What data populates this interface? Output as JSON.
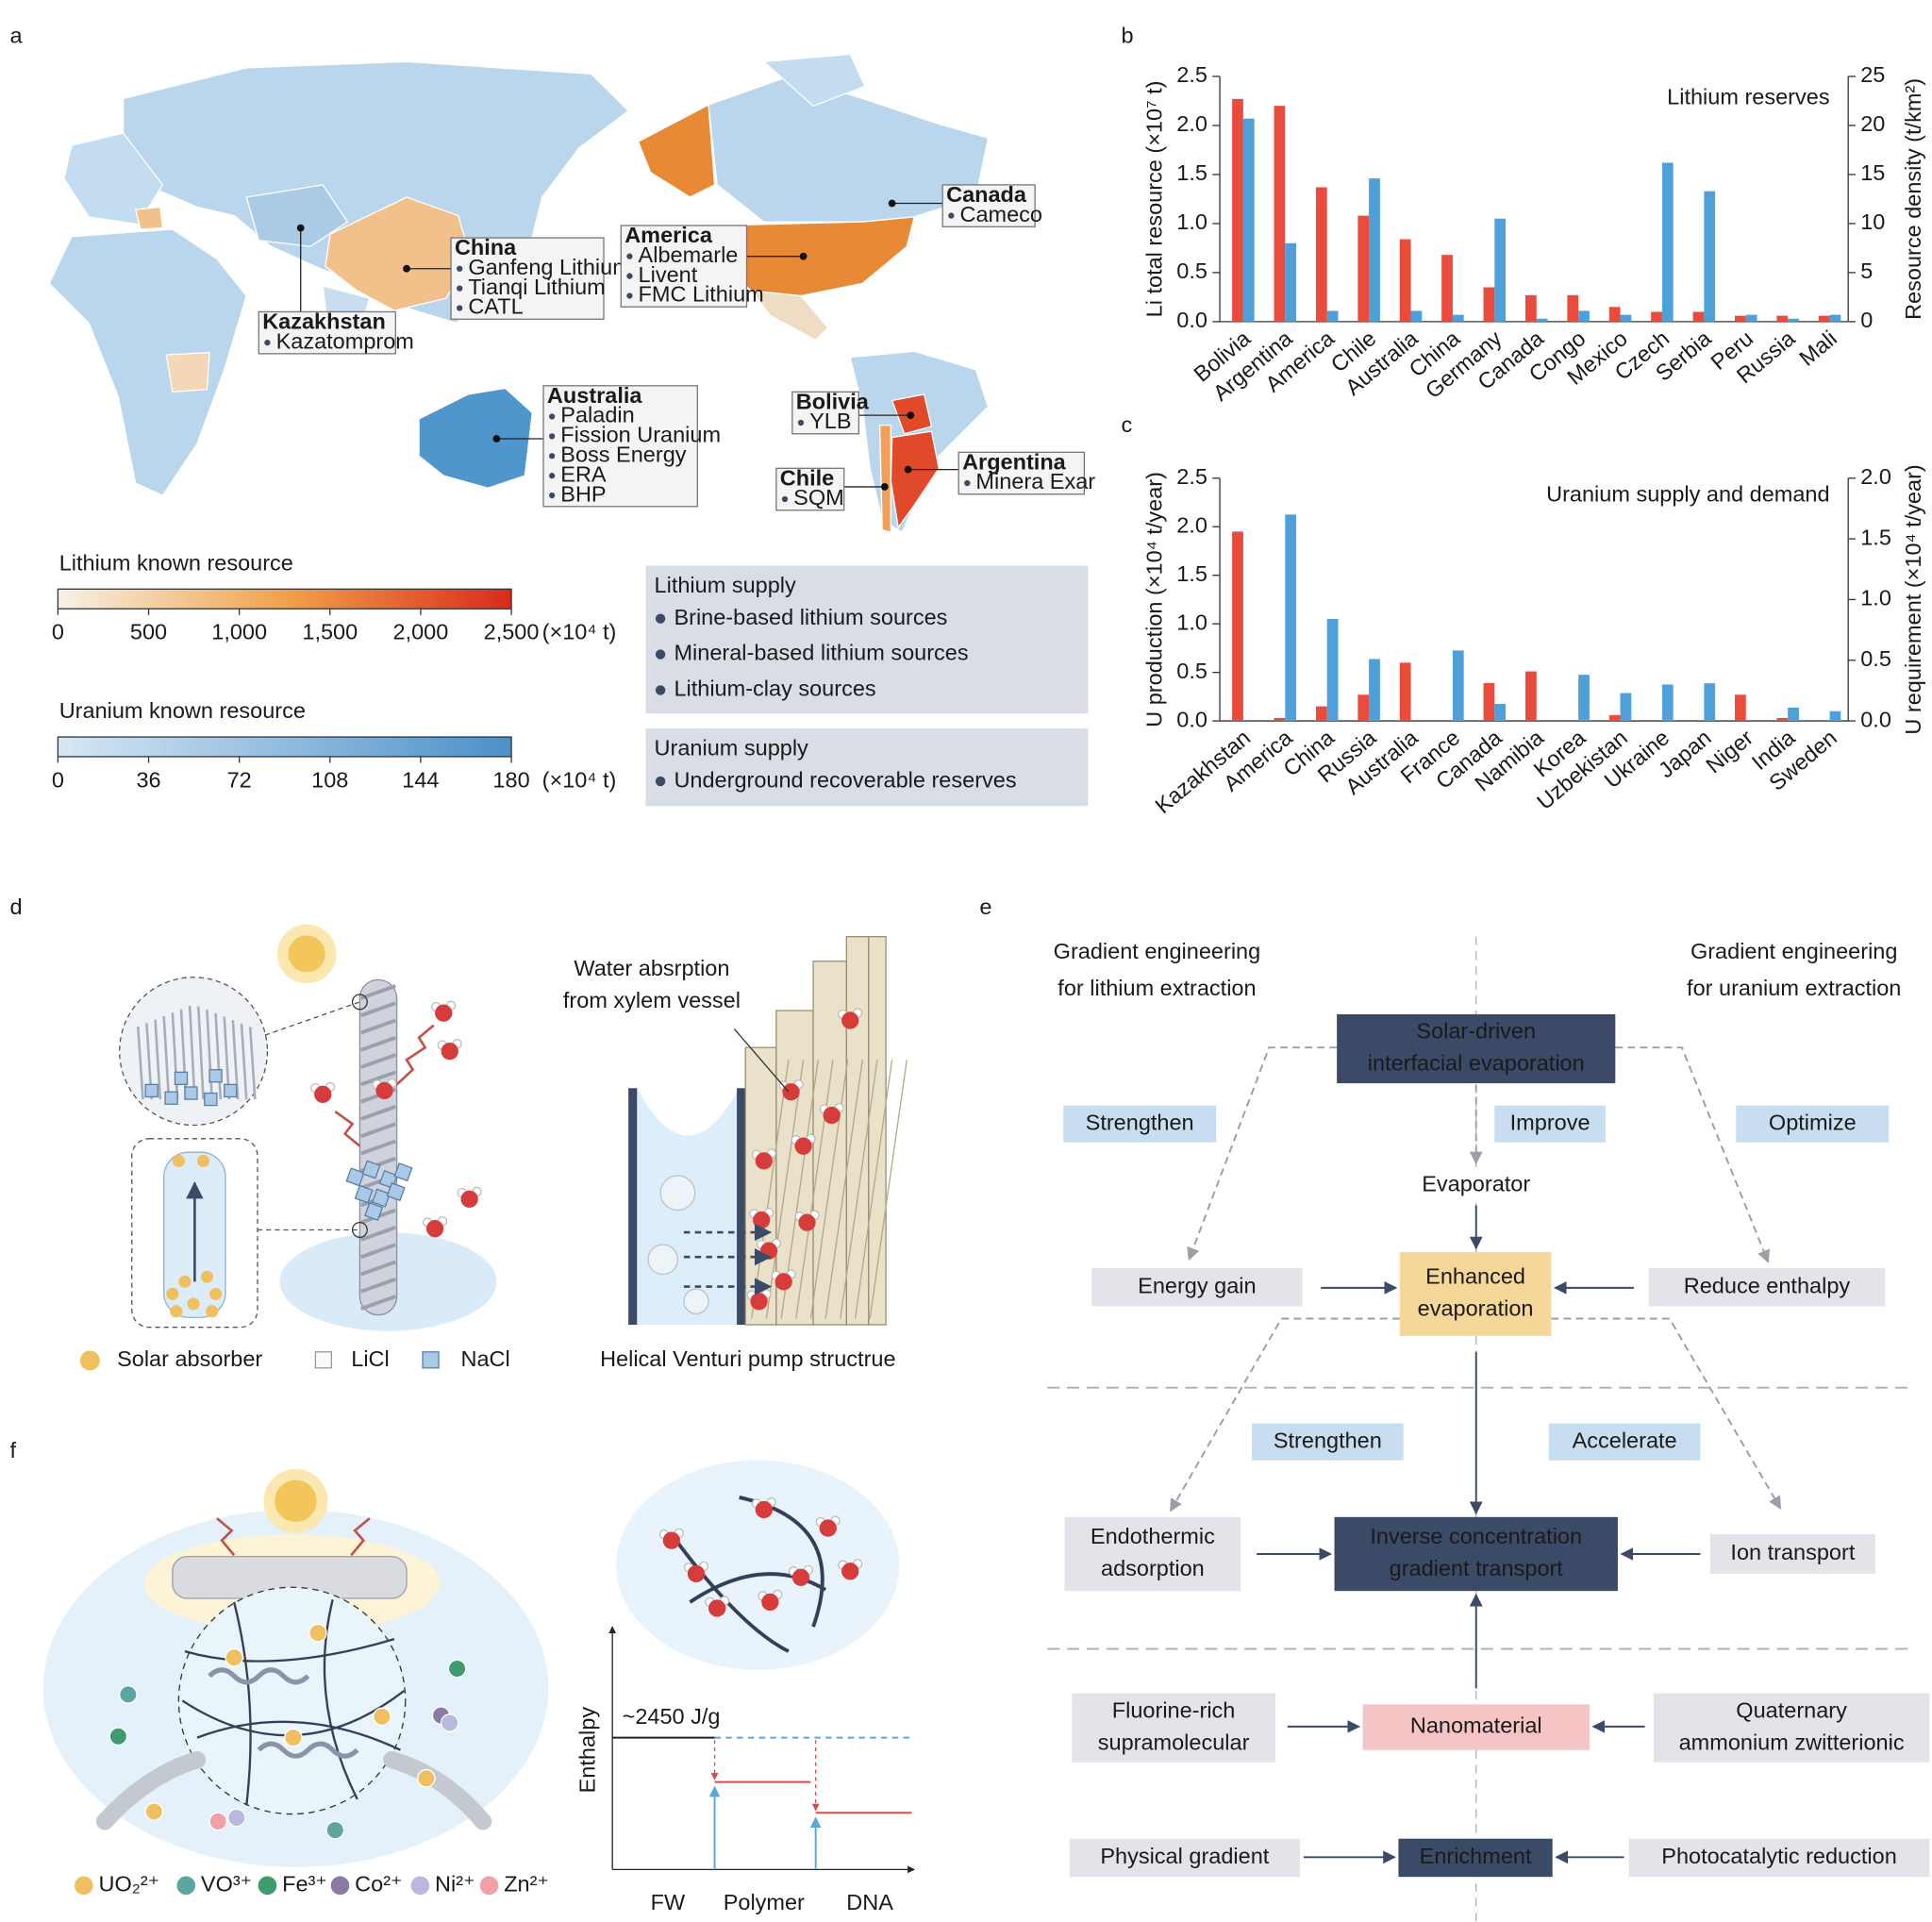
{
  "panels": [
    "a",
    "b",
    "c",
    "d",
    "e",
    "f"
  ],
  "map": {
    "regions": [
      {
        "name": "Kazakhstan",
        "items": [
          "Kazatomprom"
        ]
      },
      {
        "name": "China",
        "items": [
          "Ganfeng Lithium",
          "Tianqi Lithium",
          "CATL"
        ]
      },
      {
        "name": "America",
        "items": [
          "Albemarle",
          "Livent",
          "FMC Lithium"
        ]
      },
      {
        "name": "Canada",
        "items": [
          "Cameco"
        ]
      },
      {
        "name": "Australia",
        "items": [
          "Paladin",
          "Fission Uranium",
          "Boss Energy",
          "ERA",
          "BHP"
        ]
      },
      {
        "name": "Bolivia",
        "items": [
          "YLB"
        ]
      },
      {
        "name": "Chile",
        "items": [
          "SQM"
        ]
      },
      {
        "name": "Argentina",
        "items": [
          "Minera Exar"
        ]
      }
    ],
    "lithium_scale": {
      "title": "Lithium known resource",
      "range": [
        0,
        2500
      ],
      "ticks": [
        0,
        500,
        {
          "value": 1000,
          "label": "1,000"
        },
        {
          "value": 1500,
          "label": "1,500"
        },
        {
          "value": 2000,
          "label": "2,000"
        },
        {
          "value": 2500,
          "label": "2,500"
        }
      ],
      "unit": "(×10⁴ t)",
      "colors": [
        "#f8f1e6",
        "#f0a24c",
        "#d92a1c"
      ]
    },
    "uranium_scale": {
      "title": "Uranium known resource",
      "range": [
        0,
        180
      ],
      "ticks": [
        0,
        36,
        72,
        108,
        144,
        180
      ],
      "unit": "(×10⁴ t)",
      "colors": [
        "#d7e7f4",
        "#4b90c8"
      ]
    },
    "supply": [
      {
        "title": "Lithium supply",
        "items": [
          "Brine-based lithium sources",
          "Mineral-based lithium sources",
          "Lithium-clay sources"
        ]
      },
      {
        "title": "Uranium supply",
        "items": [
          "Underground recoverable reserves"
        ]
      }
    ]
  },
  "chart_data": [
    {
      "type": "bar",
      "title": "Lithium reserves",
      "ylabel": "Li total resource (×10⁷ t)",
      "y2label": "Resource density (t/km²)",
      "categories": [
        "Bolivia",
        "Argentina",
        "America",
        "Chile",
        "Australia",
        "China",
        "Germany",
        "Canada",
        "Congo",
        "Mexico",
        "Czech",
        "Serbia",
        "Peru",
        "Russia",
        "Mali"
      ],
      "series": [
        {
          "color": "#e94c3d",
          "values": [
            2.27,
            2.2,
            1.37,
            1.08,
            0.84,
            0.68,
            0.35,
            0.27,
            0.27,
            0.15,
            0.1,
            0.1,
            0.06,
            0.06,
            0.06
          ]
        },
        {
          "color": "#4f9fd9",
          "axis": "y2",
          "values": [
            20.7,
            8,
            1.1,
            14.6,
            1.1,
            0.7,
            10.5,
            0.3,
            1.1,
            0.7,
            16.2,
            13.3,
            0.7,
            0.3,
            0.7
          ]
        }
      ],
      "ylim": [
        0,
        2.5
      ],
      "yticks": [
        {
          "value": 0,
          "label": "0.0"
        },
        0.5,
        {
          "value": 1,
          "label": "1.0"
        },
        1.5,
        {
          "value": 2,
          "label": "2.0"
        },
        2.5
      ],
      "y2lim": [
        0,
        25
      ],
      "y2ticks": [
        0,
        5,
        10,
        15,
        20,
        25
      ]
    },
    {
      "type": "bar",
      "title": "Uranium supply and demand",
      "ylabel": "U production (×10⁴ t/year)",
      "y2label": "U requirement (×10⁴ t/year)",
      "categories": [
        "Kazakhstan",
        "America",
        "China",
        "Russia",
        "Australia",
        "France",
        "Canada",
        "Namibia",
        "Korea",
        "Uzbekistan",
        "Ukraine",
        "Japan",
        "Niger",
        "India",
        "Sweden"
      ],
      "series": [
        {
          "color": "#e94c3d",
          "values": [
            1.95,
            0.03,
            0.15,
            0.27,
            0.6,
            0,
            0.39,
            0.51,
            0,
            0.06,
            0,
            0,
            0.27,
            0.03,
            0
          ]
        },
        {
          "color": "#4f9fd9",
          "axis": "y2",
          "values": [
            0,
            1.7,
            0.84,
            0.51,
            0,
            0.58,
            0.14,
            0,
            0.38,
            0.23,
            0.3,
            0.31,
            0,
            0.11,
            0.08
          ]
        }
      ],
      "ylim": [
        0,
        2.5
      ],
      "yticks": [
        {
          "value": 0,
          "label": "0.0"
        },
        0.5,
        {
          "value": 1,
          "label": "1.0"
        },
        1.5,
        {
          "value": 2,
          "label": "2.0"
        },
        2.5
      ],
      "y2lim": [
        0,
        2
      ],
      "y2ticks": [
        {
          "value": 0,
          "label": "0.0"
        },
        0.5,
        {
          "value": 1,
          "label": "1.0"
        },
        1.5,
        {
          "value": 2,
          "label": "2.0"
        }
      ]
    }
  ],
  "panel_d": {
    "caption": [
      "Water absrption",
      "from xylem vessel"
    ],
    "legend": [
      "Solar absorber",
      "LiCl",
      "NaCl"
    ],
    "title": "Helical Venturi pump structrue"
  },
  "panel_e": {
    "ions": [
      "UO₂²⁺",
      "VO³⁺",
      "Fe³⁺",
      "Co²⁺",
      "Ni²⁺",
      "Zn²⁺"
    ],
    "y_label": "Enthalpy",
    "annotation": "~2450 J/g",
    "x_labels": [
      "FW",
      "Polymer",
      "DNA"
    ]
  },
  "panel_f": {
    "headings": [
      [
        "Gradient engineering",
        "for lithium extraction"
      ],
      [
        "Gradient engineering",
        "for uranium extraction"
      ]
    ],
    "nodes": [
      [
        "Solar-driven",
        "interfacial evaporation"
      ],
      [
        "Strengthen"
      ],
      [
        "Improve"
      ],
      [
        "Optimize"
      ],
      [
        "Evaporator"
      ],
      [
        "Energy gain"
      ],
      [
        "Enhanced",
        "evaporation"
      ],
      [
        "Reduce enthalpy"
      ],
      [
        "Strengthen"
      ],
      [
        "Accelerate"
      ],
      [
        "Endothermic",
        "adsorption"
      ],
      [
        "Inverse concentration",
        "gradient transport"
      ],
      [
        "Ion transport"
      ],
      [
        "Fluorine-rich",
        "supramolecular"
      ],
      [
        "Nanomaterial"
      ],
      [
        "Quaternary",
        "ammonium zwitterionic"
      ],
      [
        "Physical gradient"
      ],
      [
        "Enrichment"
      ],
      [
        "Photocatalytic reduction"
      ]
    ]
  }
}
